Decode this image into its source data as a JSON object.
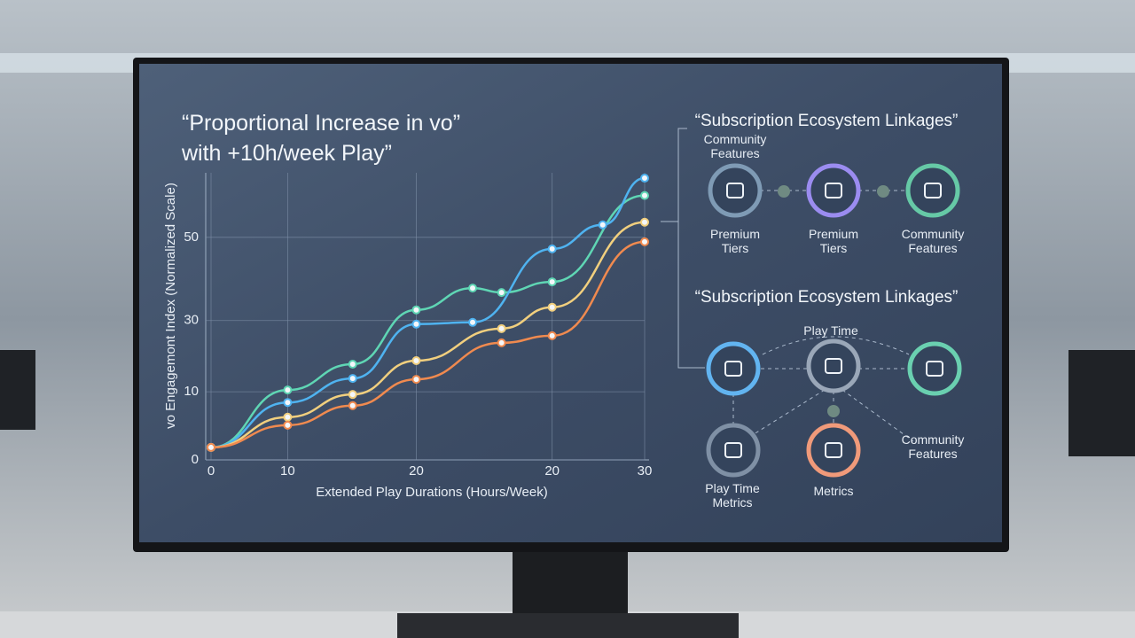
{
  "chart_data": {
    "type": "line",
    "title": [
      "“Proportional Increase in vo”",
      "with +10h/week Play”"
    ],
    "y_label": "vo Engagemont Index (Normalized Scale)",
    "x_label": "Extended Play Durations (Hours/Week)",
    "xlim": [
      0,
      30
    ],
    "ylim": [
      0,
      64.5
    ],
    "xticks": [
      0,
      {
        "value": 5.3,
        "label": "10"
      },
      {
        "value": 14.2,
        "label": "20"
      },
      {
        "value": 23.6,
        "label": "20"
      },
      30
    ],
    "yticks": [
      0,
      {
        "value": 15.3,
        "label": "10"
      },
      {
        "value": 31.3,
        "label": "30"
      },
      50
    ],
    "grid": true,
    "series": [
      {
        "color": "#5fd6b4",
        "x": [
          0,
          5.3,
          9.8,
          14.2,
          18.1,
          20.1,
          23.6,
          30
        ],
        "values": [
          2.8,
          15.7,
          21.5,
          33.7,
          38.6,
          37.6,
          40,
          59.4
        ]
      },
      {
        "color": "#4fb3f0",
        "x": [
          0,
          5.3,
          9.8,
          14.2,
          18.1,
          23.6,
          27.1,
          30
        ],
        "values": [
          2.8,
          12.9,
          18.3,
          30.5,
          30.9,
          47.4,
          52.8,
          63.3
        ]
      },
      {
        "color": "#f1cf7e",
        "x": [
          0,
          5.3,
          9.8,
          14.2,
          20.1,
          23.6,
          30
        ],
        "values": [
          2.8,
          9.6,
          14.7,
          22.3,
          29.5,
          34.3,
          53.4
        ]
      },
      {
        "color": "#f08a4f",
        "x": [
          0,
          5.3,
          9.8,
          14.2,
          20.1,
          23.6,
          30
        ],
        "values": [
          2.8,
          7.8,
          12.2,
          18.1,
          26.3,
          27.9,
          49
        ]
      }
    ]
  },
  "diagrams": [
    {
      "title": "“Subscription Ecosystem Linkages”",
      "labels": [
        "Community Features",
        "Premium Tiers",
        "Premium Tiers",
        "Community Features"
      ]
    },
    {
      "title": "“Subscription Ecosystem Linkages”",
      "labels": [
        "Play Time",
        "Community Features",
        "Play Time Metrics",
        "Metrics"
      ]
    }
  ]
}
